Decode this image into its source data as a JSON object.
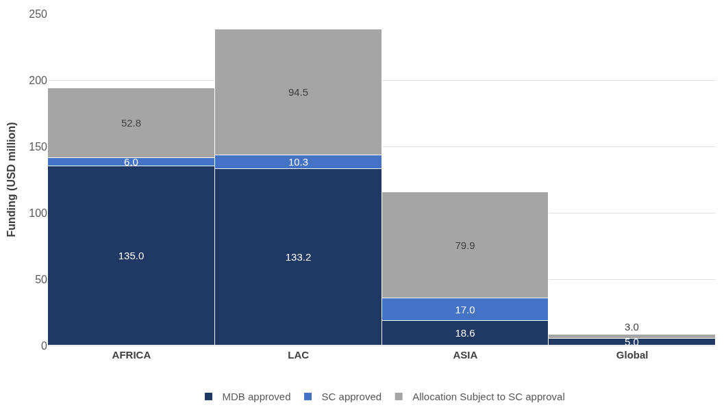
{
  "chart_data": {
    "type": "bar",
    "stacked": true,
    "ylabel": "Funding (USD million)",
    "categories": [
      "AFRICA",
      "LAC",
      "ASIA",
      "Global"
    ],
    "series": [
      {
        "name": "MDB approved",
        "color": "#1f3864",
        "values": [
          135.0,
          133.2,
          18.6,
          5.0
        ],
        "value_labels": [
          "135.0",
          "133.2",
          "18.6",
          "5.0"
        ]
      },
      {
        "name": "SC approved",
        "color": "#4472c4",
        "values": [
          6.0,
          10.3,
          17.0,
          null
        ],
        "value_labels": [
          "6.0",
          "10.3",
          "17.0",
          null
        ]
      },
      {
        "name": "Allocation Subject to SC approval",
        "color": "#a5a5a5",
        "values": [
          52.8,
          94.5,
          79.9,
          3.0
        ],
        "value_labels": [
          "52.8",
          "94.5",
          "79.9",
          "3.0"
        ]
      }
    ],
    "ylim": [
      0,
      250
    ],
    "yticks": [
      0,
      50,
      100,
      150,
      200,
      250
    ],
    "grid": "y",
    "legend": "bottom"
  }
}
